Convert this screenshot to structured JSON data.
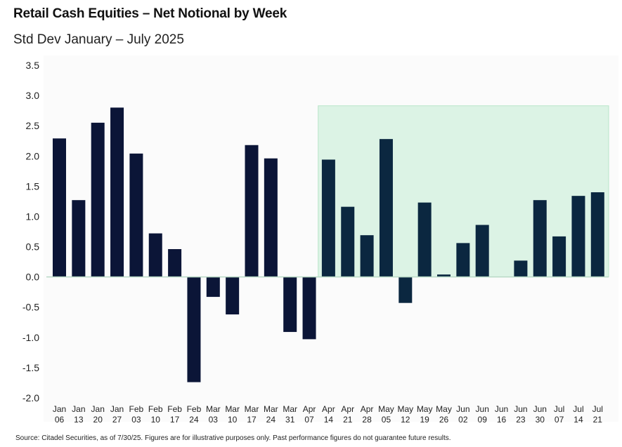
{
  "header": {
    "title": "Retail Cash Equities – Net Notional by Week",
    "subtitle": "Std Dev January – July 2025"
  },
  "footer": {
    "source": "Source: Citadel Securities, as of 7/30/25. Figures are for illustrative purposes only. Past performance figures do not guarantee future results."
  },
  "colors": {
    "bar": "#0b1537",
    "bar_highlight": "#0b2740",
    "highlight_band": "#dcf3e5",
    "highlight_border": "#b9e4c9",
    "axis_text": "#222222"
  },
  "chart_data": {
    "type": "bar",
    "title": "Retail Cash Equities – Net Notional by Week",
    "subtitle": "Std Dev January – July 2025",
    "xlabel": "",
    "ylabel": "",
    "ylim": [
      -2.0,
      3.5
    ],
    "yticks": [
      "3.5",
      "3.0",
      "2.5",
      "2.0",
      "1.5",
      "1.0",
      "0.5",
      "0.0",
      "-0.5",
      "-1.0",
      "-1.5",
      "-2.0"
    ],
    "ytick_values": [
      3.5,
      3.0,
      2.5,
      2.0,
      1.5,
      1.0,
      0.5,
      0.0,
      -0.5,
      -1.0,
      -1.5,
      -2.0
    ],
    "grid": false,
    "legend": "none",
    "highlight": {
      "from_category_index": 14,
      "to_category_index": 29,
      "top_value": 2.83
    },
    "categories": [
      [
        "Jan",
        "06"
      ],
      [
        "Jan",
        "13"
      ],
      [
        "Jan",
        "20"
      ],
      [
        "Jan",
        "27"
      ],
      [
        "Feb",
        "03"
      ],
      [
        "Feb",
        "10"
      ],
      [
        "Feb",
        "17"
      ],
      [
        "Feb",
        "24"
      ],
      [
        "Mar",
        "03"
      ],
      [
        "Mar",
        "10"
      ],
      [
        "Mar",
        "17"
      ],
      [
        "Mar",
        "24"
      ],
      [
        "Mar",
        "31"
      ],
      [
        "Apr",
        "07"
      ],
      [
        "Apr",
        "14"
      ],
      [
        "Apr",
        "21"
      ],
      [
        "Apr",
        "28"
      ],
      [
        "May",
        "05"
      ],
      [
        "May",
        "12"
      ],
      [
        "May",
        "19"
      ],
      [
        "May",
        "26"
      ],
      [
        "Jun",
        "02"
      ],
      [
        "Jun",
        "09"
      ],
      [
        "Jun",
        "16"
      ],
      [
        "Jun",
        "23"
      ],
      [
        "Jun",
        "30"
      ],
      [
        "Jul",
        "07"
      ],
      [
        "Jul",
        "14"
      ],
      [
        "Jul",
        "21"
      ]
    ],
    "values": [
      2.29,
      1.27,
      2.55,
      2.8,
      2.04,
      0.72,
      0.46,
      -1.74,
      -0.33,
      -0.62,
      2.18,
      1.96,
      -0.91,
      -1.03,
      1.94,
      1.16,
      0.69,
      2.28,
      -0.43,
      1.23,
      0.04,
      0.56,
      0.86,
      0.0,
      0.27,
      1.27,
      0.67,
      1.34,
      1.4
    ]
  }
}
